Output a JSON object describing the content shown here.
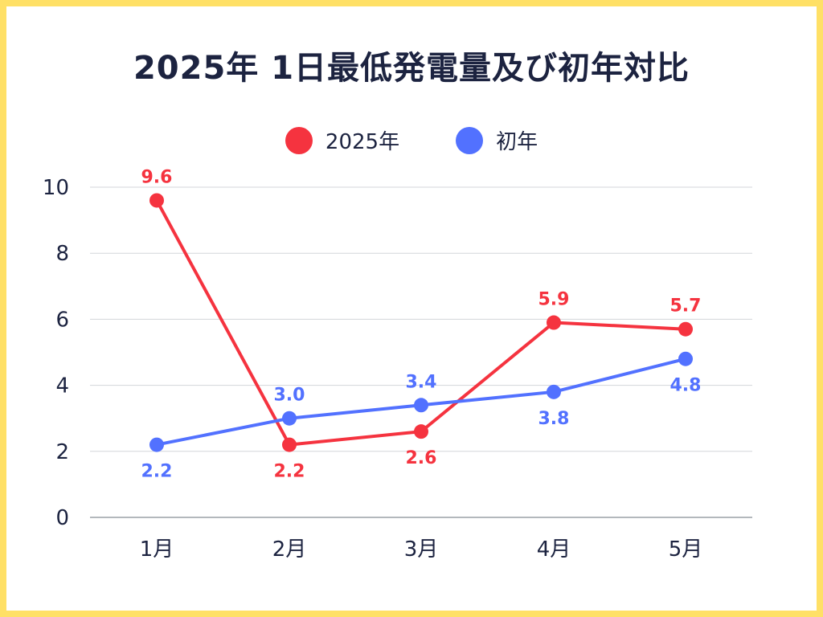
{
  "chart_data": {
    "type": "line",
    "title": "2025年 1日最低発電量及び初年対比",
    "categories": [
      "1月",
      "2月",
      "3月",
      "4月",
      "5月"
    ],
    "ylim": [
      0,
      10
    ],
    "yticks": [
      0,
      2,
      4,
      6,
      8,
      10
    ],
    "grid": true,
    "legend_position": "top-center",
    "series": [
      {
        "name": "2025年",
        "color": "#f5333f",
        "values": [
          9.6,
          2.2,
          2.6,
          5.9,
          5.7
        ],
        "labels": [
          "9.6",
          "2.2",
          "2.6",
          "5.9",
          "5.7"
        ]
      },
      {
        "name": "初年",
        "color": "#5271ff",
        "values": [
          2.2,
          3.0,
          3.4,
          3.8,
          4.8
        ],
        "labels": [
          "2.2",
          "3.0",
          "3.4",
          "3.8",
          "4.8"
        ]
      }
    ]
  }
}
